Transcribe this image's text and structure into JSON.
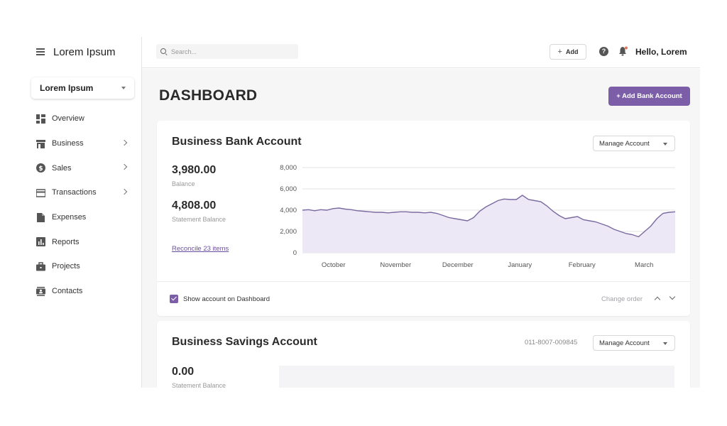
{
  "brand": {
    "name": "Lorem Ipsum"
  },
  "org_select": {
    "value": "Lorem Ipsum"
  },
  "sidebar": {
    "items": [
      {
        "label": "Overview",
        "icon": "grid-icon",
        "has_chevron": false
      },
      {
        "label": "Business",
        "icon": "store-icon",
        "has_chevron": true
      },
      {
        "label": "Sales",
        "icon": "dollar-icon",
        "has_chevron": true
      },
      {
        "label": "Transactions",
        "icon": "card-icon",
        "has_chevron": true
      },
      {
        "label": "Expenses",
        "icon": "document-icon",
        "has_chevron": false
      },
      {
        "label": "Reports",
        "icon": "bar-chart-icon",
        "has_chevron": false
      },
      {
        "label": "Projects",
        "icon": "briefcase-icon",
        "has_chevron": false
      },
      {
        "label": "Contacts",
        "icon": "contact-card-icon",
        "has_chevron": false
      }
    ]
  },
  "topbar": {
    "search_placeholder": "Search...",
    "add_label": "Add",
    "greeting": "Hello, Lorem"
  },
  "page": {
    "title": "DASHBOARD",
    "add_bank_label": "+ Add Bank Account"
  },
  "accounts": [
    {
      "title": "Business Bank Account",
      "manage_label": "Manage Account",
      "balance": "3,980.00",
      "balance_label": "Balance",
      "statement_balance": "4,808.00",
      "statement_label": "Statement Balance",
      "reconcile_label": "Reconcile 23 items",
      "show_label": "Show account on Dashboard",
      "show_checked": true,
      "change_order_label": "Change order"
    },
    {
      "title": "Business Savings Account",
      "account_number": "011-8007-009845",
      "manage_label": "Manage Account",
      "statement_balance": "0.00",
      "statement_label": "Statement Balance"
    }
  ],
  "chart_data": {
    "type": "area",
    "title": "",
    "xlabel": "",
    "ylabel": "",
    "x_tick_labels": [
      "October",
      "November",
      "December",
      "January",
      "February",
      "March"
    ],
    "y_ticks": [
      0,
      2000,
      4000,
      6000,
      8000
    ],
    "y_tick_labels": [
      "0",
      "2,000",
      "4,000",
      "6,000",
      "8,000"
    ],
    "ylim": [
      0,
      8000
    ],
    "grid": true,
    "series": [
      {
        "color": "#7a6aa0",
        "fill": "#ece8f6",
        "values": [
          4000,
          4050,
          3950,
          4050,
          4000,
          4150,
          4200,
          4100,
          4050,
          3950,
          3900,
          3850,
          3800,
          3800,
          3750,
          3800,
          3850,
          3850,
          3800,
          3800,
          3750,
          3800,
          3700,
          3500,
          3300,
          3200,
          3100,
          3000,
          3300,
          3900,
          4300,
          4600,
          4900,
          5050,
          5000,
          5000,
          5400,
          5000,
          4900,
          4800,
          4400,
          3900,
          3500,
          3200,
          3300,
          3400,
          3100,
          3000,
          2900,
          2700,
          2500,
          2200,
          2000,
          1800,
          1700,
          1500,
          2000,
          2500,
          3200,
          3700,
          3800,
          3850
        ]
      }
    ]
  }
}
